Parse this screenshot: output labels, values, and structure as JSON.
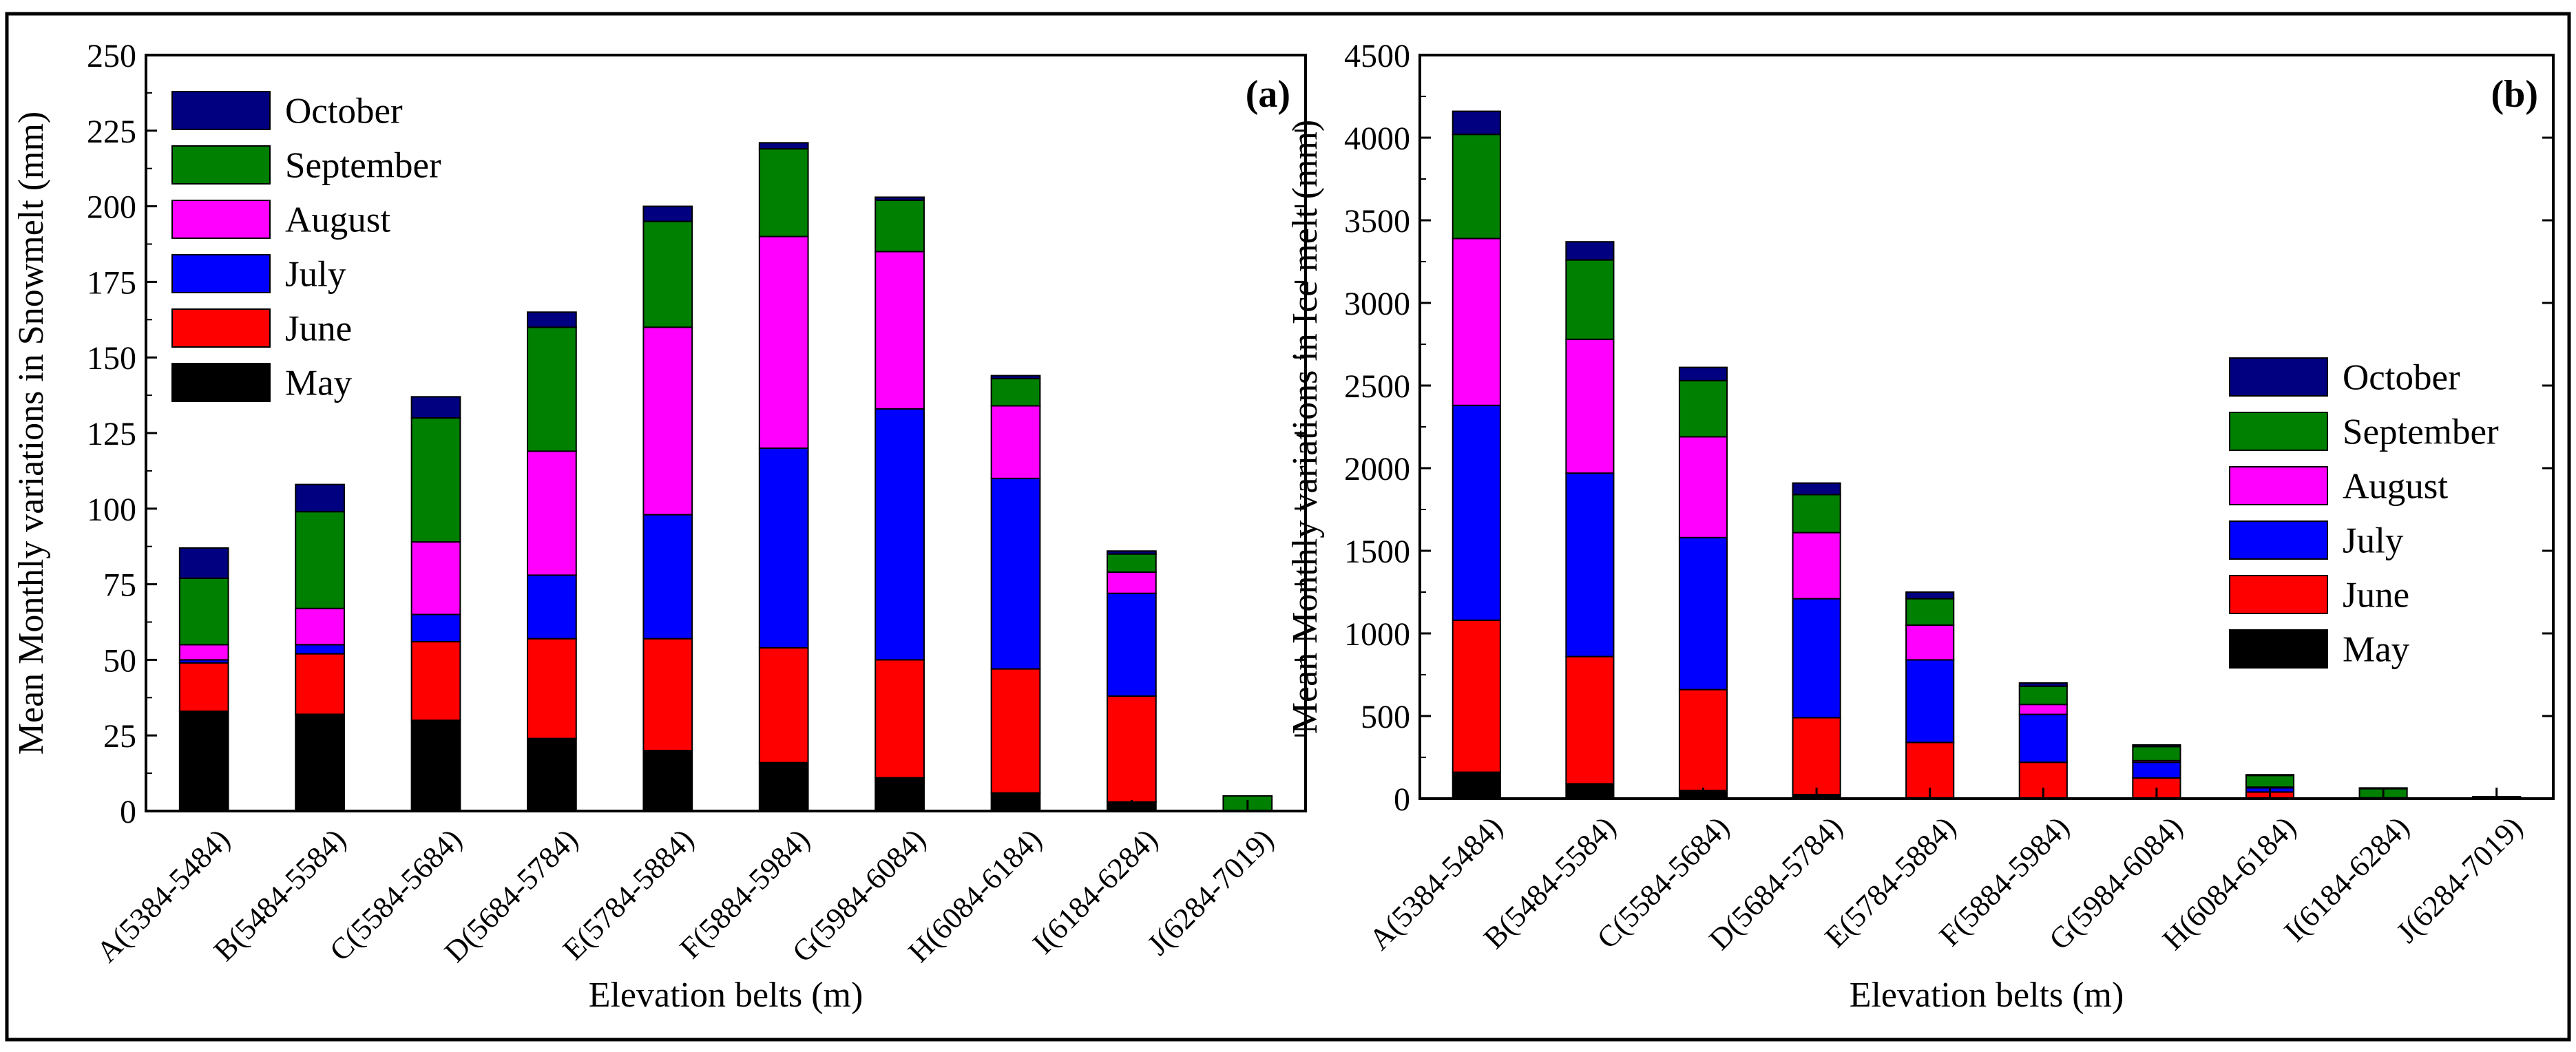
{
  "months": [
    "May",
    "June",
    "July",
    "August",
    "September",
    "October"
  ],
  "colors": {
    "May": "#000000",
    "June": "#ff0000",
    "July": "#0000ff",
    "August": "#ff00ff",
    "September": "#008000",
    "October": "#000080"
  },
  "chart_data": [
    {
      "type": "bar",
      "stacked": true,
      "panel_label": "(a)",
      "xlabel": "Elevation belts (m)",
      "ylabel": "Mean Monthly variations in Snowmelt (mm)",
      "ylim": [
        0,
        250
      ],
      "yticks": [
        0,
        25,
        50,
        75,
        100,
        125,
        150,
        175,
        200,
        225,
        250
      ],
      "legend_position": "top-left",
      "categories": [
        "A(5384-5484)",
        "B(5484-5584)",
        "C(5584-5684)",
        "D(5684-5784)",
        "E(5784-5884)",
        "F(5884-5984)",
        "G(5984-6084)",
        "H(6084-6184)",
        "I(6184-6284)",
        "J(6284-7019)"
      ],
      "series": [
        {
          "name": "May",
          "values": [
            33,
            32,
            30,
            24,
            20,
            16,
            11,
            6,
            3,
            0
          ]
        },
        {
          "name": "June",
          "values": [
            16,
            20,
            26,
            33,
            37,
            38,
            39,
            41,
            35,
            0
          ]
        },
        {
          "name": "July",
          "values": [
            1,
            3,
            9,
            21,
            41,
            66,
            83,
            63,
            34,
            0
          ]
        },
        {
          "name": "August",
          "values": [
            5,
            12,
            24,
            41,
            62,
            70,
            52,
            24,
            7,
            0
          ]
        },
        {
          "name": "September",
          "values": [
            22,
            32,
            41,
            41,
            35,
            29,
            17,
            9,
            6,
            5
          ]
        },
        {
          "name": "October",
          "values": [
            10,
            9,
            7,
            5,
            5,
            2,
            1,
            1,
            1,
            0
          ]
        }
      ]
    },
    {
      "type": "bar",
      "stacked": true,
      "panel_label": "(b)",
      "xlabel": "Elevation belts (m)",
      "ylabel": "Mean Monthly variations in Ice melt (mm)",
      "ylim": [
        0,
        4500
      ],
      "yticks": [
        0,
        500,
        1000,
        1500,
        2000,
        2500,
        3000,
        3500,
        4000,
        4500
      ],
      "legend_position": "center-right",
      "categories": [
        "A(5384-5484)",
        "B(5484-5584)",
        "C(5584-5684)",
        "D(5684-5784)",
        "E(5784-5884)",
        "F(5884-5984)",
        "G(5984-6084)",
        "H(6084-6184)",
        "I(6184-6284)",
        "J(6284-7019)"
      ],
      "series": [
        {
          "name": "May",
          "values": [
            160,
            90,
            50,
            25,
            5,
            0,
            0,
            0,
            0,
            0
          ]
        },
        {
          "name": "June",
          "values": [
            920,
            770,
            610,
            465,
            335,
            220,
            125,
            40,
            5,
            0
          ]
        },
        {
          "name": "July",
          "values": [
            1300,
            1110,
            920,
            720,
            500,
            290,
            95,
            25,
            0,
            0
          ]
        },
        {
          "name": "August",
          "values": [
            1010,
            810,
            610,
            400,
            210,
            60,
            10,
            5,
            0,
            0
          ]
        },
        {
          "name": "September",
          "values": [
            630,
            480,
            340,
            230,
            160,
            110,
            85,
            70,
            55,
            10
          ]
        },
        {
          "name": "October",
          "values": [
            140,
            110,
            80,
            70,
            40,
            20,
            10,
            5,
            5,
            2
          ]
        }
      ]
    }
  ]
}
